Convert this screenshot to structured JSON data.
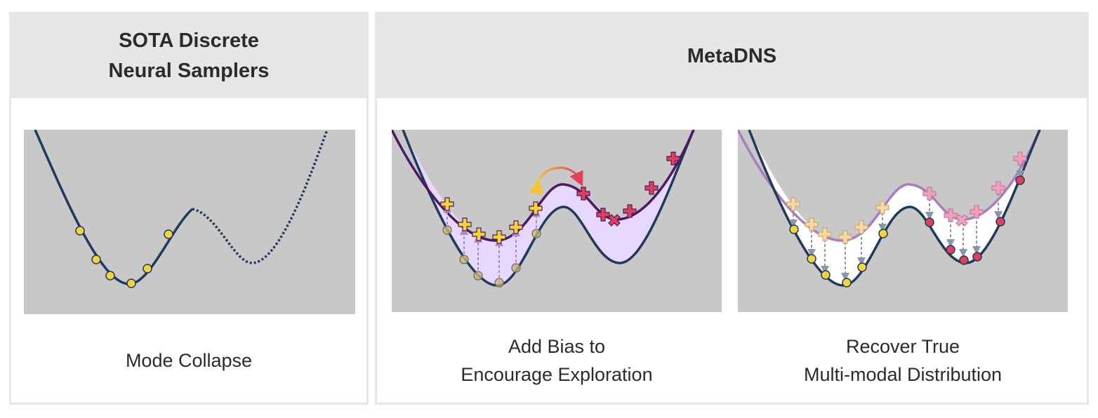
{
  "left_panel": {
    "title_line1": "SOTA Discrete",
    "title_line2": "Neural Samplers",
    "caption": "Mode Collapse"
  },
  "right_panel": {
    "title": "MetaDNS",
    "middle_caption_line1": "Add Bias to",
    "middle_caption_line2": "Encourage Exploration",
    "right_caption_line1": "Recover True",
    "right_caption_line2": "Multi-modal Distribution"
  },
  "colors": {
    "curve": "#1f3a5c",
    "biased_curve": "#4b1a66",
    "biased_fill": "#e6d8ff",
    "faded_curve": "#a77dbf",
    "plot_bg": "#c8c8c8",
    "yellow_sample": "#f7d33a",
    "red_sample": "#e0405a",
    "arrow_up": "#a58bc9",
    "arrow_down": "#8a97a8"
  },
  "icons": {
    "left_samples": "circle-marker",
    "plus_samples": "plus-marker",
    "cross_sample": "x-marker",
    "jump_arrow": "curved-arrow"
  }
}
